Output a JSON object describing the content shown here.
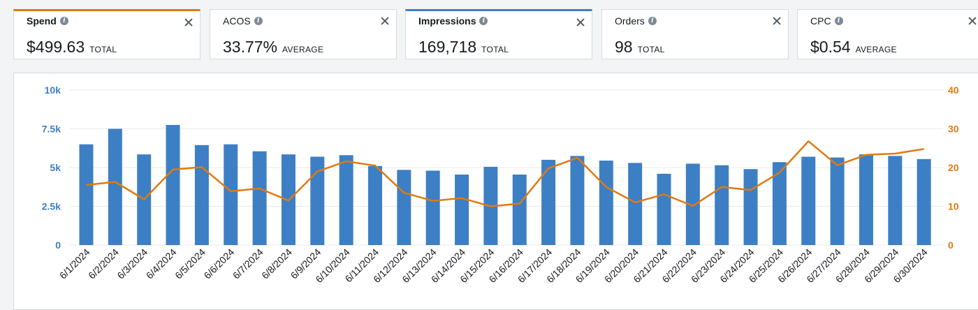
{
  "metrics": [
    {
      "title": "Spend",
      "value": "$499.63",
      "unit": "TOTAL",
      "selected": "orange"
    },
    {
      "title": "ACOS",
      "value": "33.77%",
      "unit": "AVERAGE",
      "selected": ""
    },
    {
      "title": "Impressions",
      "value": "169,718",
      "unit": "TOTAL",
      "selected": "blue"
    },
    {
      "title": "Orders",
      "value": "98",
      "unit": "TOTAL",
      "selected": ""
    },
    {
      "title": "CPC",
      "value": "$0.54",
      "unit": "AVERAGE",
      "selected": ""
    }
  ],
  "icons": {
    "info": "info-icon",
    "close": "close-icon"
  },
  "colors": {
    "bars": "#3d7fc4",
    "line": "#e07a10",
    "selected_orange": "#e07a10",
    "selected_blue": "#3d7fc4"
  },
  "chart_data": {
    "type": "bar",
    "categories": [
      "6/1/2024",
      "6/2/2024",
      "6/3/2024",
      "6/4/2024",
      "6/5/2024",
      "6/6/2024",
      "6/7/2024",
      "6/8/2024",
      "6/9/2024",
      "6/10/2024",
      "6/11/2024",
      "6/12/2024",
      "6/13/2024",
      "6/14/2024",
      "6/15/2024",
      "6/16/2024",
      "6/17/2024",
      "6/18/2024",
      "6/19/2024",
      "6/20/2024",
      "6/21/2024",
      "6/22/2024",
      "6/23/2024",
      "6/24/2024",
      "6/25/2024",
      "6/26/2024",
      "6/27/2024",
      "6/28/2024",
      "6/29/2024",
      "6/30/2024"
    ],
    "series": [
      {
        "type": "bar",
        "axis": "left",
        "color": "#3d7fc4",
        "values": [
          6500,
          7500,
          5850,
          7750,
          6450,
          6500,
          6050,
          5850,
          5700,
          5800,
          5100,
          4850,
          4800,
          4550,
          5050,
          4550,
          5500,
          5750,
          5450,
          5300,
          4600,
          5250,
          5150,
          4900,
          5350,
          5700,
          5650,
          5850,
          5750,
          5550
        ]
      },
      {
        "type": "line",
        "axis": "right",
        "color": "#e07a10",
        "values": [
          15.5,
          16.3,
          11.8,
          19.5,
          20.1,
          13.9,
          14.6,
          11.5,
          19.0,
          21.6,
          20.5,
          13.5,
          11.4,
          12.1,
          10.0,
          10.7,
          19.8,
          22.5,
          15.0,
          11.0,
          13.1,
          10.1,
          15.0,
          14.2,
          18.7,
          26.8,
          20.6,
          23.3,
          23.6,
          24.8
        ]
      }
    ],
    "y_left": {
      "ticks": [
        "10k",
        "7.5k",
        "5k",
        "2.5k",
        "0"
      ],
      "range": [
        0,
        10000
      ]
    },
    "y_right": {
      "ticks": [
        "40",
        "30",
        "20",
        "10",
        "0"
      ],
      "range": [
        0,
        40
      ]
    },
    "grid": true
  }
}
